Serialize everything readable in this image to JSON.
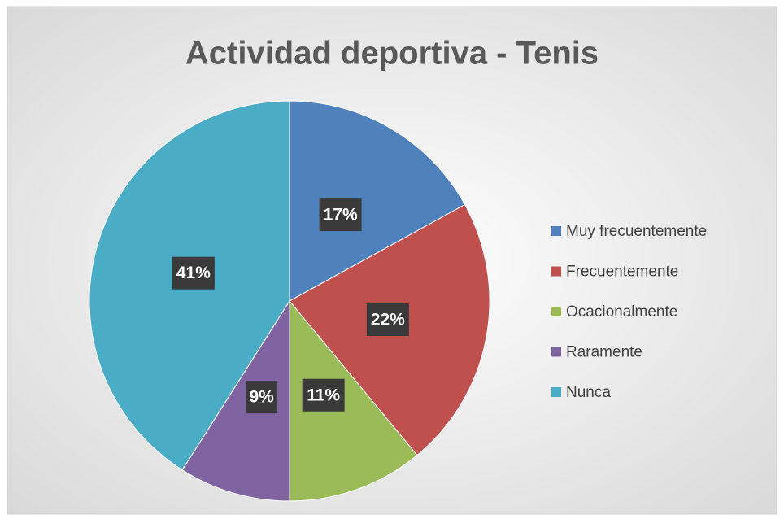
{
  "chart_data": {
    "type": "pie",
    "title": "Actividad deportiva - Tenis",
    "categories": [
      "Muy frecuentemente",
      "Frecuentemente",
      "Ocacionalmente",
      "Raramente",
      "Nunca"
    ],
    "values": [
      17,
      22,
      11,
      9,
      41
    ],
    "value_labels": [
      "17%",
      "22%",
      "11%",
      "9%",
      "41%"
    ],
    "colors": [
      "#4f81bd",
      "#c0504d",
      "#9bbb59",
      "#8064a2",
      "#4bacc6"
    ],
    "legend": "right"
  }
}
